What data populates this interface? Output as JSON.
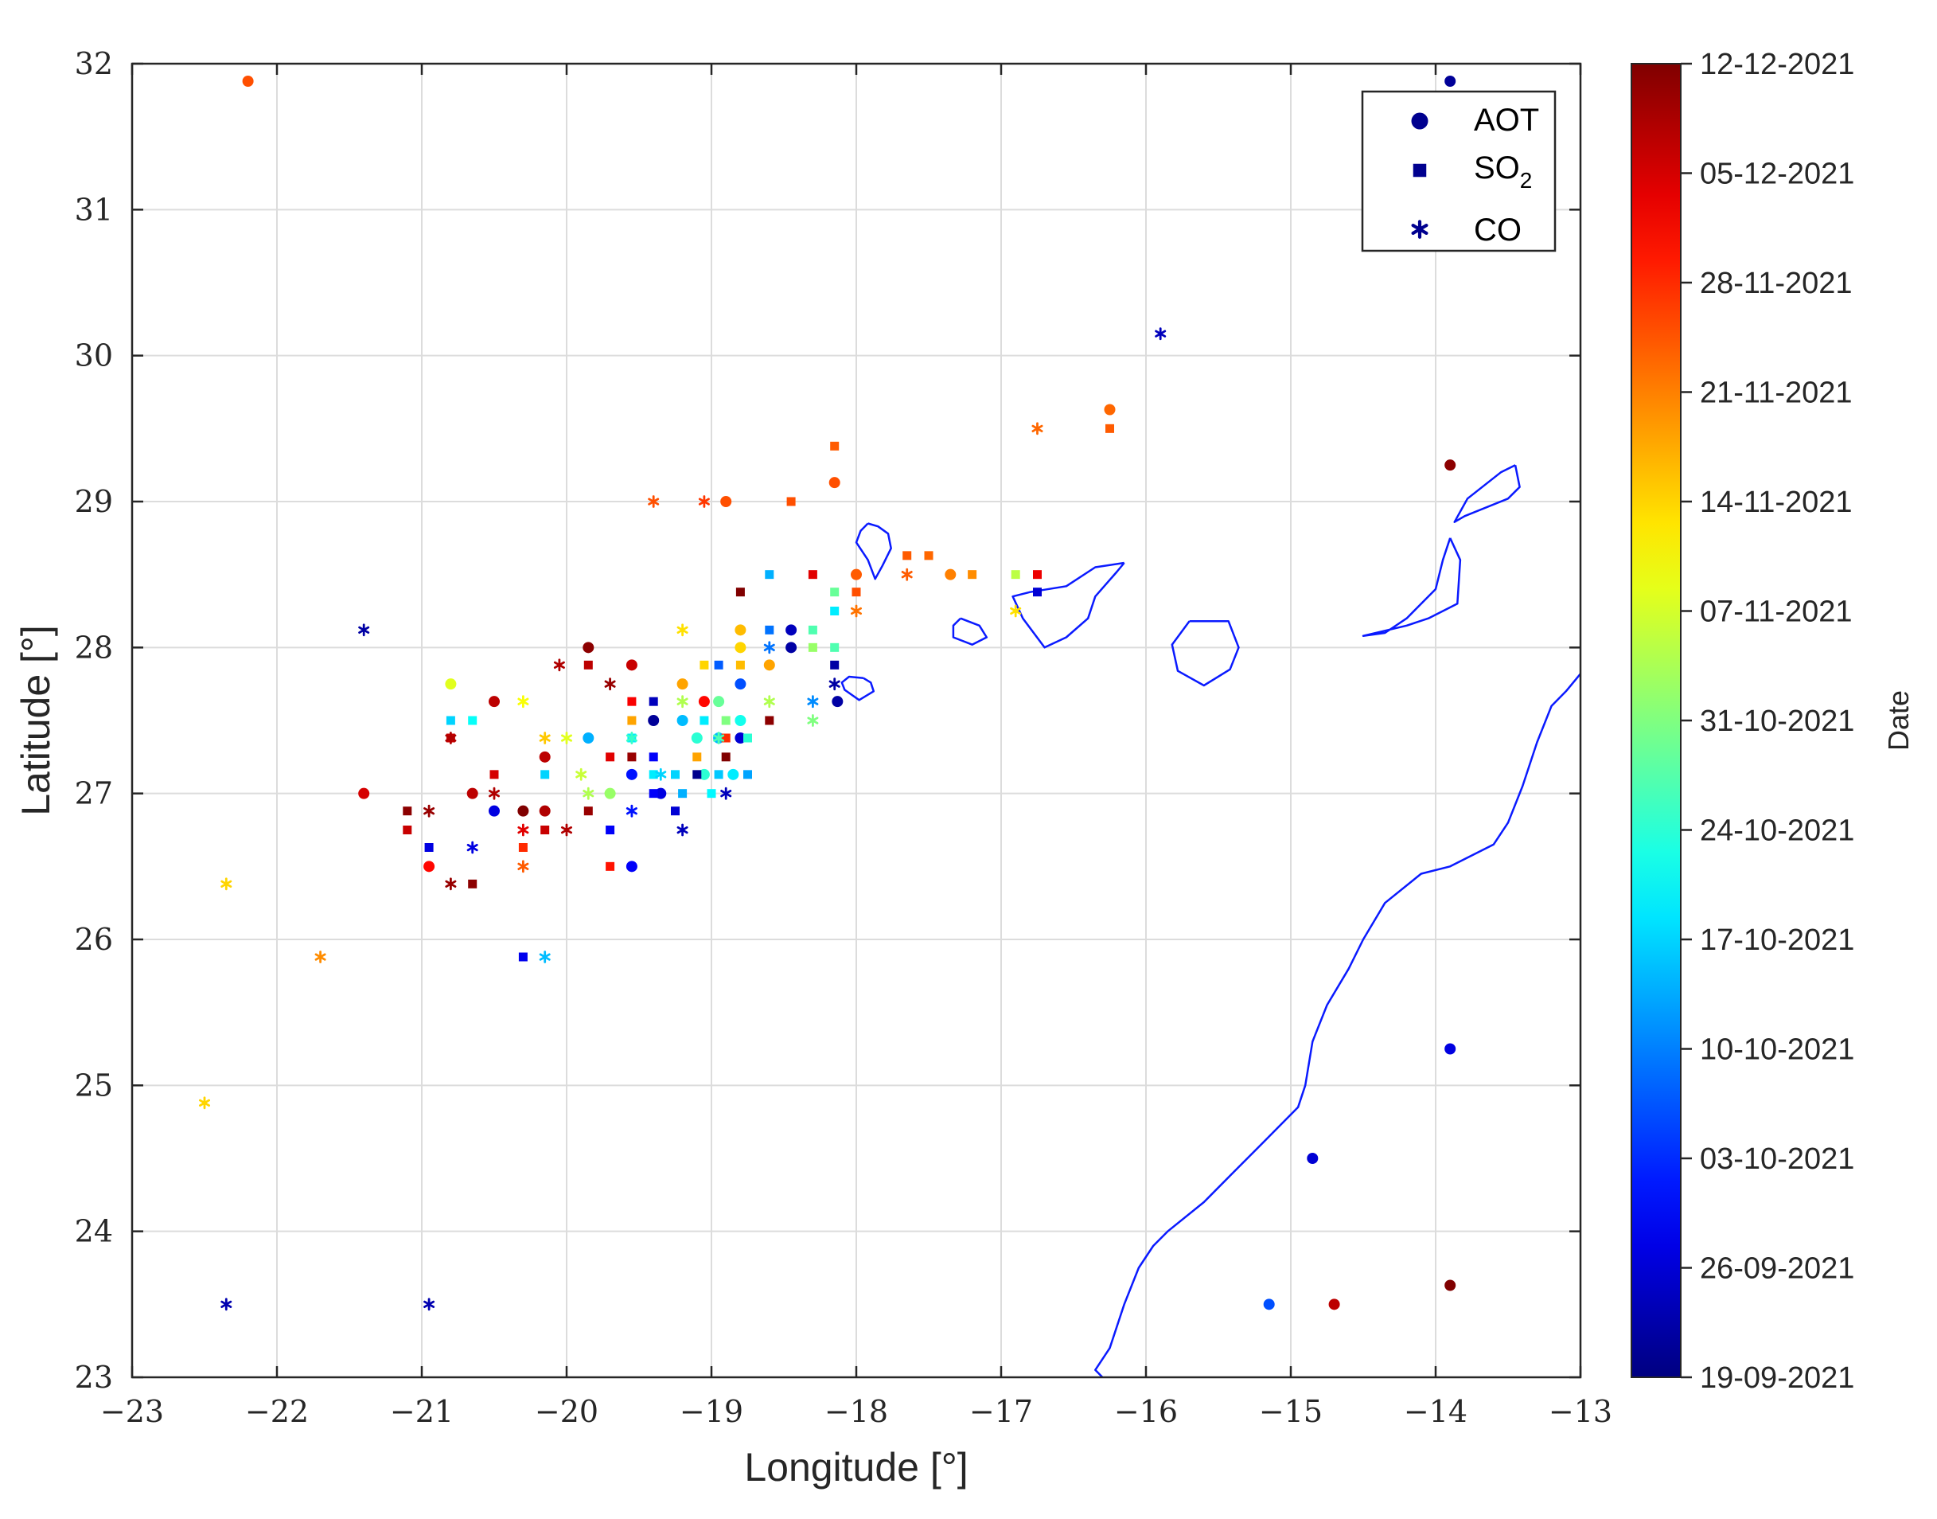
{
  "chart_data": {
    "type": "scatter",
    "xlabel": "Longitude [°]",
    "ylabel": "Latitude [°]",
    "xlim": [
      -23,
      -13
    ],
    "ylim": [
      23,
      32
    ],
    "xticks": [
      -23,
      -22,
      -21,
      -20,
      -19,
      -18,
      -17,
      -16,
      -15,
      -14,
      -13
    ],
    "yticks": [
      23,
      24,
      25,
      26,
      27,
      28,
      29,
      30,
      31,
      32
    ],
    "grid": true,
    "legend_placement": "top-right",
    "colorbar": {
      "label": "Date",
      "colormap": "jet",
      "range_days": [
        0,
        84
      ],
      "ticks": [
        {
          "day": 0,
          "label": "19-09-2021"
        },
        {
          "day": 7,
          "label": "26-09-2021"
        },
        {
          "day": 14,
          "label": "03-10-2021"
        },
        {
          "day": 21,
          "label": "10-10-2021"
        },
        {
          "day": 28,
          "label": "17-10-2021"
        },
        {
          "day": 35,
          "label": "24-10-2021"
        },
        {
          "day": 42,
          "label": "31-10-2021"
        },
        {
          "day": 49,
          "label": "07-11-2021"
        },
        {
          "day": 56,
          "label": "14-11-2021"
        },
        {
          "day": 63,
          "label": "21-11-2021"
        },
        {
          "day": 70,
          "label": "28-11-2021"
        },
        {
          "day": 77,
          "label": "05-12-2021"
        },
        {
          "day": 84,
          "label": "12-12-2021"
        }
      ]
    },
    "series": [
      {
        "name": "AOT",
        "marker": "circle",
        "points": [
          [
            -22.2,
            31.88,
            67
          ],
          [
            -13.9,
            31.88,
            2
          ],
          [
            -16.25,
            29.63,
            65
          ],
          [
            -13.9,
            29.25,
            83
          ],
          [
            -18.15,
            29.13,
            67
          ],
          [
            -18.9,
            29.0,
            67
          ],
          [
            -18.0,
            28.5,
            66
          ],
          [
            -17.35,
            28.5,
            63
          ],
          [
            -19.85,
            28.0,
            83
          ],
          [
            -19.55,
            27.88,
            78
          ],
          [
            -18.6,
            27.88,
            60
          ],
          [
            -18.8,
            28.12,
            58
          ],
          [
            -18.45,
            28.12,
            5
          ],
          [
            -18.45,
            28.0,
            3
          ],
          [
            -18.8,
            28.0,
            56
          ],
          [
            -18.13,
            27.63,
            3
          ],
          [
            -20.8,
            27.75,
            50
          ],
          [
            -20.5,
            27.63,
            79
          ],
          [
            -19.2,
            27.75,
            60
          ],
          [
            -19.05,
            27.63,
            73
          ],
          [
            -18.95,
            27.63,
            40
          ],
          [
            -18.8,
            27.75,
            17
          ],
          [
            -19.4,
            27.5,
            2
          ],
          [
            -19.2,
            27.5,
            26
          ],
          [
            -18.8,
            27.5,
            33
          ],
          [
            -19.85,
            27.38,
            25
          ],
          [
            -19.1,
            27.38,
            35
          ],
          [
            -18.95,
            27.38,
            26
          ],
          [
            -18.8,
            27.38,
            7
          ],
          [
            -20.15,
            27.25,
            79
          ],
          [
            -21.4,
            27.0,
            77
          ],
          [
            -20.65,
            27.0,
            79
          ],
          [
            -19.55,
            27.13,
            12
          ],
          [
            -19.05,
            27.13,
            35
          ],
          [
            -18.85,
            27.13,
            30
          ],
          [
            -19.35,
            27.0,
            8
          ],
          [
            -20.5,
            26.88,
            8
          ],
          [
            -20.15,
            26.88,
            80
          ],
          [
            -20.3,
            26.88,
            84
          ],
          [
            -20.95,
            26.5,
            73
          ],
          [
            -19.55,
            26.5,
            10
          ],
          [
            -19.7,
            27.0,
            44
          ],
          [
            -14.85,
            24.5,
            7
          ],
          [
            -13.9,
            25.25,
            8
          ],
          [
            -15.15,
            23.5,
            17
          ],
          [
            -14.7,
            23.5,
            79
          ],
          [
            -13.9,
            23.63,
            84
          ]
        ]
      },
      {
        "name": "SO2",
        "marker": "square",
        "points": [
          [
            -18.15,
            29.38,
            66
          ],
          [
            -18.45,
            29.0,
            67
          ],
          [
            -16.25,
            29.5,
            66
          ],
          [
            -18.3,
            28.5,
            76
          ],
          [
            -18.6,
            28.5,
            25
          ],
          [
            -18.15,
            28.38,
            40
          ],
          [
            -18.0,
            28.38,
            67
          ],
          [
            -18.8,
            28.38,
            84
          ],
          [
            -18.6,
            28.12,
            20
          ],
          [
            -18.3,
            28.12,
            38
          ],
          [
            -18.15,
            28.25,
            30
          ],
          [
            -18.3,
            28.0,
            44
          ],
          [
            -18.15,
            28.0,
            38
          ],
          [
            -19.85,
            27.88,
            79
          ],
          [
            -19.4,
            27.63,
            5
          ],
          [
            -18.15,
            27.88,
            3
          ],
          [
            -18.95,
            27.88,
            18
          ],
          [
            -18.8,
            27.88,
            58
          ],
          [
            -19.05,
            27.88,
            56
          ],
          [
            -19.55,
            27.63,
            74
          ],
          [
            -20.8,
            27.5,
            28
          ],
          [
            -20.65,
            27.5,
            32
          ],
          [
            -19.55,
            27.5,
            60
          ],
          [
            -19.05,
            27.5,
            30
          ],
          [
            -18.9,
            27.5,
            42
          ],
          [
            -18.6,
            27.5,
            83
          ],
          [
            -20.8,
            27.38,
            78
          ],
          [
            -19.55,
            27.38,
            30
          ],
          [
            -18.9,
            27.38,
            70
          ],
          [
            -18.75,
            27.38,
            35
          ],
          [
            -19.55,
            27.25,
            82
          ],
          [
            -19.7,
            27.25,
            76
          ],
          [
            -19.4,
            27.25,
            10
          ],
          [
            -19.1,
            27.25,
            60
          ],
          [
            -18.9,
            27.25,
            84
          ],
          [
            -20.5,
            27.13,
            77
          ],
          [
            -20.15,
            27.13,
            28
          ],
          [
            -19.4,
            27.13,
            30
          ],
          [
            -19.25,
            27.13,
            28
          ],
          [
            -18.95,
            27.13,
            27
          ],
          [
            -18.75,
            27.13,
            24
          ],
          [
            -19.1,
            27.13,
            1
          ],
          [
            -21.1,
            26.88,
            83
          ],
          [
            -19.85,
            26.88,
            82
          ],
          [
            -19.25,
            26.88,
            7
          ],
          [
            -21.1,
            26.75,
            78
          ],
          [
            -20.15,
            26.75,
            78
          ],
          [
            -19.7,
            26.75,
            10
          ],
          [
            -20.95,
            26.63,
            8
          ],
          [
            -20.3,
            26.63,
            70
          ],
          [
            -20.65,
            26.38,
            83
          ],
          [
            -19.7,
            26.5,
            72
          ],
          [
            -20.3,
            25.88,
            9
          ],
          [
            -16.75,
            28.5,
            75
          ],
          [
            -16.9,
            28.5,
            47
          ],
          [
            -17.2,
            28.5,
            62
          ],
          [
            -16.75,
            28.38,
            7
          ],
          [
            -17.5,
            28.63,
            65
          ],
          [
            -17.65,
            28.63,
            66
          ],
          [
            -19.4,
            27.0,
            10
          ],
          [
            -19.2,
            27.0,
            25
          ],
          [
            -19.0,
            27.0,
            31
          ]
        ]
      },
      {
        "name": "CO",
        "marker": "star",
        "points": [
          [
            -19.4,
            29.0,
            67
          ],
          [
            -19.05,
            29.0,
            69
          ],
          [
            -16.75,
            29.5,
            65
          ],
          [
            -15.9,
            30.15,
            5
          ],
          [
            -17.65,
            28.5,
            66
          ],
          [
            -18.0,
            28.25,
            64
          ],
          [
            -16.9,
            28.25,
            55
          ],
          [
            -21.4,
            28.12,
            3
          ],
          [
            -19.2,
            28.12,
            55
          ],
          [
            -18.6,
            28.0,
            20
          ],
          [
            -18.15,
            27.75,
            3
          ],
          [
            -18.3,
            27.63,
            22
          ],
          [
            -18.6,
            27.63,
            46
          ],
          [
            -20.05,
            27.88,
            80
          ],
          [
            -19.7,
            27.75,
            82
          ],
          [
            -20.3,
            27.63,
            52
          ],
          [
            -19.2,
            27.63,
            46
          ],
          [
            -20.15,
            27.38,
            57
          ],
          [
            -20.0,
            27.38,
            50
          ],
          [
            -18.3,
            27.5,
            42
          ],
          [
            -19.55,
            27.38,
            36
          ],
          [
            -18.95,
            27.38,
            38
          ],
          [
            -20.8,
            27.38,
            80
          ],
          [
            -20.5,
            27.0,
            80
          ],
          [
            -19.35,
            27.13,
            28
          ],
          [
            -19.85,
            27.0,
            46
          ],
          [
            -20.95,
            26.88,
            82
          ],
          [
            -20.3,
            26.75,
            76
          ],
          [
            -20.0,
            26.75,
            80
          ],
          [
            -19.55,
            26.88,
            12
          ],
          [
            -19.2,
            26.75,
            5
          ],
          [
            -20.65,
            26.63,
            8
          ],
          [
            -20.8,
            26.38,
            82
          ],
          [
            -20.3,
            26.5,
            66
          ],
          [
            -18.9,
            27.0,
            5
          ],
          [
            -22.35,
            26.38,
            56
          ],
          [
            -21.7,
            25.88,
            62
          ],
          [
            -20.15,
            25.88,
            26
          ],
          [
            -22.5,
            24.88,
            56
          ],
          [
            -22.35,
            23.5,
            4
          ],
          [
            -20.95,
            23.5,
            4
          ],
          [
            -19.9,
            27.13,
            48
          ]
        ]
      }
    ],
    "coastlines": [
      [
        [
          -17.92,
          28.85
        ],
        [
          -17.85,
          28.83
        ],
        [
          -17.78,
          28.78
        ],
        [
          -17.76,
          28.68
        ],
        [
          -17.82,
          28.56
        ],
        [
          -17.87,
          28.47
        ],
        [
          -17.92,
          28.6
        ],
        [
          -18.0,
          28.72
        ],
        [
          -17.97,
          28.8
        ],
        [
          -17.92,
          28.85
        ]
      ],
      [
        [
          -17.95,
          27.79
        ],
        [
          -17.9,
          27.76
        ],
        [
          -17.88,
          27.7
        ],
        [
          -17.98,
          27.64
        ],
        [
          -18.08,
          27.71
        ],
        [
          -18.1,
          27.76
        ],
        [
          -18.05,
          27.8
        ],
        [
          -17.95,
          27.79
        ]
      ],
      [
        [
          -17.28,
          28.2
        ],
        [
          -17.15,
          28.15
        ],
        [
          -17.1,
          28.07
        ],
        [
          -17.2,
          28.02
        ],
        [
          -17.33,
          28.07
        ],
        [
          -17.33,
          28.15
        ],
        [
          -17.28,
          28.2
        ]
      ],
      [
        [
          -16.15,
          28.58
        ],
        [
          -16.35,
          28.55
        ],
        [
          -16.55,
          28.42
        ],
        [
          -16.8,
          28.38
        ],
        [
          -16.92,
          28.35
        ],
        [
          -16.85,
          28.2
        ],
        [
          -16.7,
          28.0
        ],
        [
          -16.55,
          28.07
        ],
        [
          -16.4,
          28.2
        ],
        [
          -16.35,
          28.35
        ],
        [
          -16.2,
          28.52
        ],
        [
          -16.15,
          28.58
        ]
      ],
      [
        [
          -15.7,
          28.18
        ],
        [
          -15.43,
          28.18
        ],
        [
          -15.36,
          28.0
        ],
        [
          -15.42,
          27.85
        ],
        [
          -15.6,
          27.74
        ],
        [
          -15.78,
          27.84
        ],
        [
          -15.82,
          28.02
        ],
        [
          -15.7,
          28.18
        ]
      ],
      [
        [
          -13.45,
          29.25
        ],
        [
          -13.42,
          29.1
        ],
        [
          -13.5,
          29.02
        ],
        [
          -13.8,
          28.9
        ],
        [
          -13.87,
          28.86
        ],
        [
          -13.78,
          29.02
        ],
        [
          -13.55,
          29.2
        ],
        [
          -13.45,
          29.25
        ]
      ],
      [
        [
          -13.9,
          28.75
        ],
        [
          -13.83,
          28.6
        ],
        [
          -13.85,
          28.3
        ],
        [
          -14.05,
          28.2
        ],
        [
          -14.2,
          28.15
        ],
        [
          -14.5,
          28.08
        ],
        [
          -14.35,
          28.1
        ],
        [
          -14.2,
          28.2
        ],
        [
          -14.0,
          28.4
        ],
        [
          -13.95,
          28.6
        ],
        [
          -13.9,
          28.75
        ]
      ],
      [
        [
          -13.0,
          27.82
        ],
        [
          -13.1,
          27.7
        ],
        [
          -13.2,
          27.6
        ],
        [
          -13.3,
          27.35
        ],
        [
          -13.4,
          27.05
        ],
        [
          -13.5,
          26.8
        ],
        [
          -13.6,
          26.65
        ],
        [
          -13.9,
          26.5
        ],
        [
          -14.1,
          26.45
        ],
        [
          -14.35,
          26.25
        ],
        [
          -14.5,
          26.0
        ],
        [
          -14.6,
          25.8
        ],
        [
          -14.75,
          25.55
        ],
        [
          -14.85,
          25.3
        ],
        [
          -14.9,
          25.0
        ],
        [
          -14.95,
          24.85
        ],
        [
          -15.2,
          24.6
        ],
        [
          -15.4,
          24.4
        ],
        [
          -15.6,
          24.2
        ],
        [
          -15.85,
          24.0
        ],
        [
          -15.95,
          23.9
        ],
        [
          -16.05,
          23.75
        ],
        [
          -16.15,
          23.5
        ],
        [
          -16.25,
          23.2
        ],
        [
          -16.35,
          23.05
        ],
        [
          -16.3,
          23.0
        ]
      ]
    ]
  }
}
